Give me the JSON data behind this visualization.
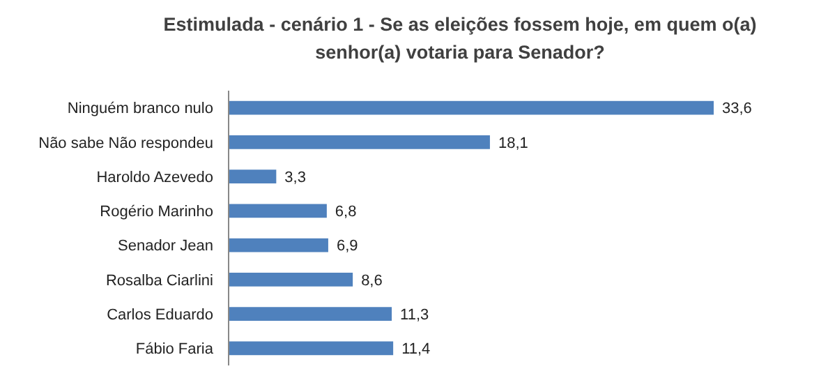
{
  "chart_data": {
    "type": "bar",
    "orientation": "horizontal",
    "title": "Estimulada - cenário 1 - Se as eleições fossem hoje, em quem o(a) senhor(a) votaria para Senador?",
    "categories": [
      "Ninguém branco nulo",
      "Não sabe Não respondeu",
      "Haroldo Azevedo",
      "Rogério Marinho",
      "Senador Jean",
      "Rosalba Ciarlini",
      "Carlos Eduardo",
      "Fábio Faria"
    ],
    "values": [
      33.6,
      18.1,
      3.3,
      6.8,
      6.9,
      8.6,
      11.3,
      11.4
    ],
    "value_labels": [
      "33,6",
      "18,1",
      "3,3",
      "6,8",
      "6,9",
      "8,6",
      "11,3",
      "11,4"
    ],
    "color": "#4f81bd"
  }
}
